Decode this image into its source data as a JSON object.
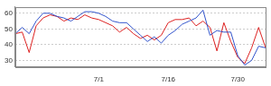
{
  "chart_data": {
    "type": "line",
    "categories": [
      null,
      null,
      null,
      null,
      null,
      null,
      null,
      null,
      null,
      null,
      null,
      null,
      "7/1",
      null,
      null,
      null,
      null,
      null,
      null,
      null,
      null,
      null,
      "7/16",
      null,
      null,
      null,
      null,
      null,
      null,
      null,
      null,
      null,
      "7/30",
      null,
      null,
      null,
      null
    ],
    "series": [
      {
        "color": "#3355cc",
        "values": [
          47,
          51,
          47,
          55,
          60,
          60,
          58,
          57,
          55,
          58,
          61,
          61,
          60,
          58,
          55,
          54,
          54,
          50,
          46,
          42,
          45,
          41,
          46,
          49,
          53,
          55,
          57,
          62,
          46,
          49,
          48,
          48,
          33,
          27,
          30,
          39,
          38
        ]
      },
      {
        "color": "#dd2222",
        "values": [
          47,
          48,
          35,
          52,
          57,
          59,
          58,
          55,
          57,
          56,
          59,
          57,
          56,
          54,
          52,
          48,
          51,
          47,
          44,
          46,
          43,
          46,
          54,
          56,
          56,
          57,
          52,
          55,
          51,
          36,
          54,
          42,
          32,
          28,
          38,
          51,
          38
        ]
      }
    ],
    "ylim": [
      26,
      64
    ],
    "yticks": [
      30,
      40,
      50,
      60
    ],
    "grid": true
  }
}
